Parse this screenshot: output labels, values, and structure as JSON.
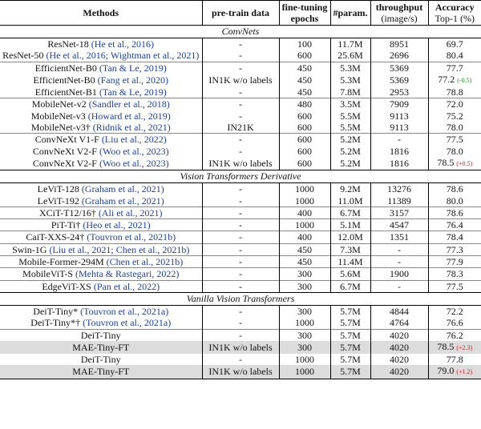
{
  "header": {
    "methods": "Methods",
    "pretrain": "pre-train data",
    "epochs": "fine-tuning epochs",
    "params": "#param.",
    "throughput": "throughput",
    "throughput_unit": "(image/s)",
    "accuracy": "Accuracy",
    "accuracy_unit": "Top-1 (%)"
  },
  "sections": [
    {
      "title": "ConvNets",
      "groups": [
        {
          "rows": [
            {
              "method": "ResNet-18",
              "cite": "(He et al., 2016)",
              "pretrain": "-",
              "epochs": "100",
              "params": "11.7M",
              "throughput": "8951",
              "acc": "69.7"
            },
            {
              "method": "ResNet-50",
              "cite": "(He et al., 2016; Wightman et al., 2021)",
              "pretrain": "-",
              "epochs": "600",
              "params": "25.6M",
              "throughput": "2696",
              "acc": "80.4"
            }
          ]
        },
        {
          "rows": [
            {
              "method": "EfficientNet-B0",
              "cite": "(Tan & Le, 2019)",
              "pretrain": "-",
              "epochs": "450",
              "params": "5.3M",
              "throughput": "5369",
              "acc": "77.7"
            },
            {
              "method": "EfficientNet-B0",
              "cite": "(Fang et al., 2020)",
              "pretrain": "IN1K w/o labels",
              "epochs": "450",
              "params": "5.3M",
              "throughput": "5369",
              "acc": "77.2",
              "delta": "(-0.5)"
            },
            {
              "method": "EfficientNet-B1",
              "cite": "(Tan & Le, 2019)",
              "pretrain": "-",
              "epochs": "450",
              "params": "7.8M",
              "throughput": "2953",
              "acc": "78.8"
            }
          ]
        },
        {
          "rows": [
            {
              "method": "MobileNet-v2",
              "cite": "(Sandler et al., 2018)",
              "pretrain": "-",
              "epochs": "480",
              "params": "3.5M",
              "throughput": "7909",
              "acc": "72.0"
            },
            {
              "method": "MobileNet-v3",
              "cite": "(Howard et al., 2019)",
              "pretrain": "-",
              "epochs": "600",
              "params": "5.5M",
              "throughput": "9113",
              "acc": "75.2"
            },
            {
              "method": "MobileNet-v3†",
              "cite": "(Ridnik et al., 2021)",
              "pretrain": "IN21K",
              "epochs": "600",
              "params": "5.5M",
              "throughput": "9113",
              "acc": "78.0"
            }
          ]
        },
        {
          "rows": [
            {
              "method": "ConvNeXt V1-F",
              "cite": "(Liu et al., 2022)",
              "pretrain": "-",
              "epochs": "600",
              "params": "5.2M",
              "throughput": "-",
              "acc": "77.5"
            },
            {
              "method": "ConvNeXt V2-F",
              "cite": "(Woo et al., 2023)",
              "pretrain": "-",
              "epochs": "600",
              "params": "5.2M",
              "throughput": "1816",
              "acc": "78.0"
            },
            {
              "method": "ConvNeXt V2-F",
              "cite": "(Woo et al., 2023)",
              "pretrain": "IN1K w/o labels",
              "epochs": "600",
              "params": "5.2M",
              "throughput": "1816",
              "acc": "78.5",
              "delta": "(+0.5)"
            }
          ]
        }
      ]
    },
    {
      "title": "Vision Transformers Derivative",
      "groups": [
        {
          "rows": [
            {
              "method": "LeViT-128",
              "cite": "(Graham et al., 2021)",
              "pretrain": "-",
              "epochs": "1000",
              "params": "9.2M",
              "throughput": "13276",
              "acc": "78.6"
            },
            {
              "method": "LeViT-192",
              "cite": "(Graham et al., 2021)",
              "pretrain": "-",
              "epochs": "1000",
              "params": "11.0M",
              "throughput": "11389",
              "acc": "80.0"
            }
          ]
        },
        {
          "rows": [
            {
              "method": "XCiT-T12/16†",
              "cite": "(Ali et al., 2021)",
              "pretrain": "-",
              "epochs": "400",
              "params": "6.7M",
              "throughput": "3157",
              "acc": "78.6"
            }
          ]
        },
        {
          "rows": [
            {
              "method": "PiT-Ti†",
              "cite": "(Heo et al., 2021)",
              "pretrain": "-",
              "epochs": "1000",
              "params": "5.1M",
              "throughput": "4547",
              "acc": "76.4"
            }
          ]
        },
        {
          "rows": [
            {
              "method": "CaiT-XXS-24†",
              "cite": "(Touvron et al., 2021b)",
              "pretrain": "-",
              "epochs": "400",
              "params": "12.0M",
              "throughput": "1351",
              "acc": "78.4"
            }
          ]
        },
        {
          "rows": [
            {
              "method": "Swin-1G",
              "cite": "(Liu et al., 2021; Chen et al., 2021b)",
              "pretrain": "-",
              "epochs": "450",
              "params": "7.3M",
              "throughput": "-",
              "acc": "77.3"
            }
          ]
        },
        {
          "rows": [
            {
              "method": "Mobile-Former-294M",
              "cite": "(Chen et al., 2021b)",
              "pretrain": "-",
              "epochs": "450",
              "params": "11.4M",
              "throughput": "-",
              "acc": "77.9"
            }
          ]
        },
        {
          "rows": [
            {
              "method": "MobileViT-S",
              "cite": "(Mehta & Rastegari, 2022)",
              "pretrain": "-",
              "epochs": "300",
              "params": "5.6M",
              "throughput": "1900",
              "acc": "78.3"
            }
          ]
        },
        {
          "rows": [
            {
              "method": "EdgeViT-XS",
              "cite": "(Pan et al., 2022)",
              "pretrain": "-",
              "epochs": "300",
              "params": "6.7M",
              "throughput": "-",
              "acc": "77.5"
            }
          ]
        }
      ]
    },
    {
      "title": "Vanilla Vision Transformers",
      "groups": [
        {
          "rows": [
            {
              "method": "DeiT-Tiny*",
              "cite": "(Touvron et al., 2021a)",
              "pretrain": "-",
              "epochs": "300",
              "params": "5.7M",
              "throughput": "4844",
              "acc": "72.2"
            },
            {
              "method": "DeiT-Tiny*†",
              "cite": "(Touvron et al., 2021a)",
              "pretrain": "-",
              "epochs": "1000",
              "params": "5.7M",
              "throughput": "4764",
              "acc": "76.6"
            }
          ]
        },
        {
          "rows": [
            {
              "method": "DeiT-Tiny",
              "pretrain": "-",
              "epochs": "300",
              "params": "5.7M",
              "throughput": "4020",
              "acc": "76.2"
            },
            {
              "method": "MAE-Tiny-FT",
              "pretrain": "IN1K w/o labels",
              "epochs": "300",
              "params": "5.7M",
              "throughput": "4020",
              "acc": "78.5",
              "delta": "(+2.3)",
              "shaded": true
            },
            {
              "method": "DeiT-Tiny",
              "pretrain": "-",
              "epochs": "1000",
              "params": "5.7M",
              "throughput": "4020",
              "acc": "77.8"
            },
            {
              "method": "MAE-Tiny-FT",
              "pretrain": "IN1K w/o labels",
              "epochs": "1000",
              "params": "5.7M",
              "throughput": "4020",
              "acc": "79.0",
              "delta": "(+1.2)",
              "shaded": true
            }
          ]
        }
      ]
    }
  ]
}
